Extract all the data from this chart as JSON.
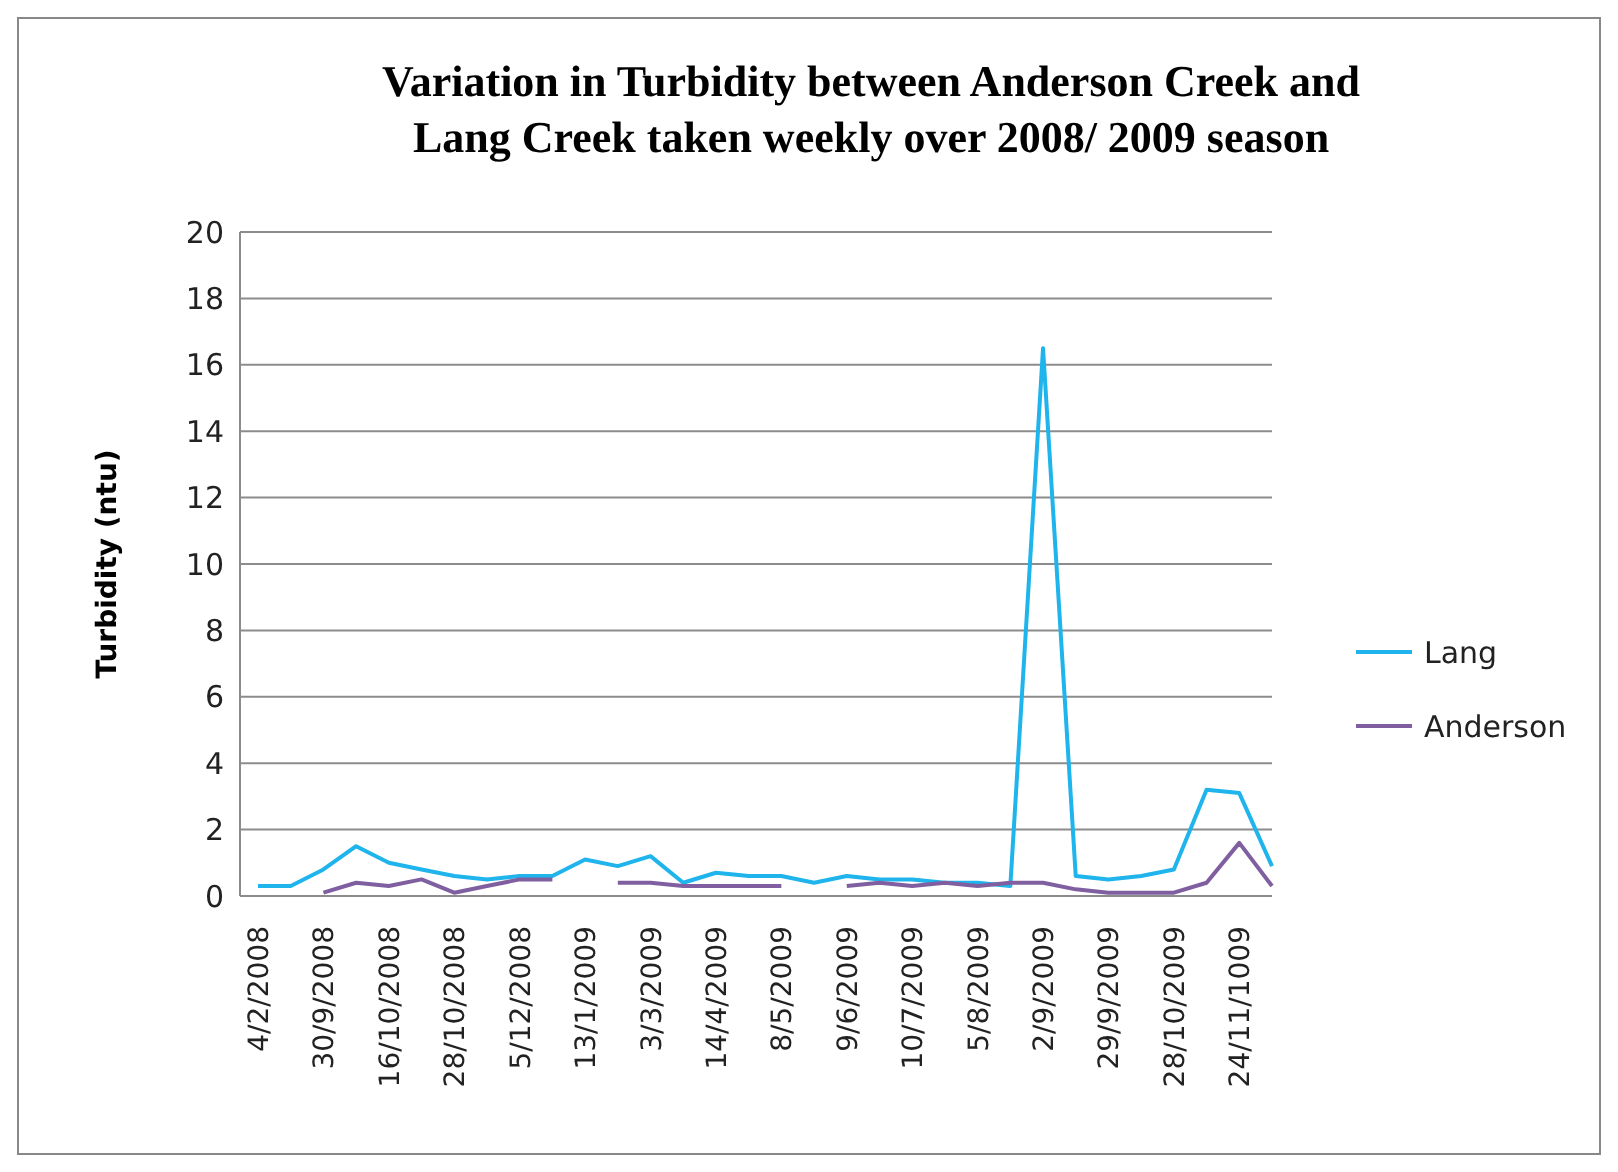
{
  "chart_data": {
    "type": "line",
    "title": "Variation in Turbidity  between Anderson Creek and Lang Creek taken weekly over 2008/ 2009 season",
    "ylabel": "Turbidity (ntu)",
    "categories": [
      "4/2/2008",
      null,
      "30/9/2008",
      null,
      "16/10/2008",
      null,
      "28/10/2008",
      null,
      "5/12/2008",
      null,
      "13/1/2009",
      null,
      "3/3/2009",
      null,
      "14/4/2009",
      null,
      "8/5/2009",
      null,
      "9/6/2009",
      null,
      "10/7/2009",
      null,
      "5/8/2009",
      null,
      "2/9/2009",
      null,
      "29/9/2009",
      null,
      "28/10/2009",
      null,
      "24/11/1009",
      null
    ],
    "series": [
      {
        "name": "Lang",
        "color": "#1fb4ec",
        "values": [
          0.3,
          0.3,
          0.8,
          1.5,
          1.0,
          0.8,
          0.6,
          0.5,
          0.6,
          0.6,
          1.1,
          0.9,
          1.2,
          0.4,
          0.7,
          0.6,
          0.6,
          0.4,
          0.6,
          0.5,
          0.5,
          0.4,
          0.4,
          0.3,
          16.5,
          0.6,
          0.5,
          0.6,
          0.8,
          3.2,
          3.1,
          0.9
        ]
      },
      {
        "name": "Anderson",
        "color": "#7f5fa0",
        "values": [
          null,
          null,
          0.1,
          0.4,
          0.3,
          0.5,
          0.1,
          0.3,
          0.5,
          0.5,
          null,
          0.4,
          0.4,
          0.3,
          0.3,
          0.3,
          0.3,
          null,
          0.3,
          0.4,
          0.3,
          0.4,
          0.3,
          0.4,
          0.4,
          0.2,
          0.1,
          0.1,
          0.1,
          0.4,
          1.6,
          0.3
        ]
      }
    ],
    "ylim": [
      0,
      20
    ],
    "yticks": [
      0,
      2,
      4,
      6,
      8,
      10,
      12,
      14,
      16,
      18,
      20
    ],
    "grid": "y",
    "legend": "right",
    "marker": "none",
    "line_style": "solid"
  }
}
